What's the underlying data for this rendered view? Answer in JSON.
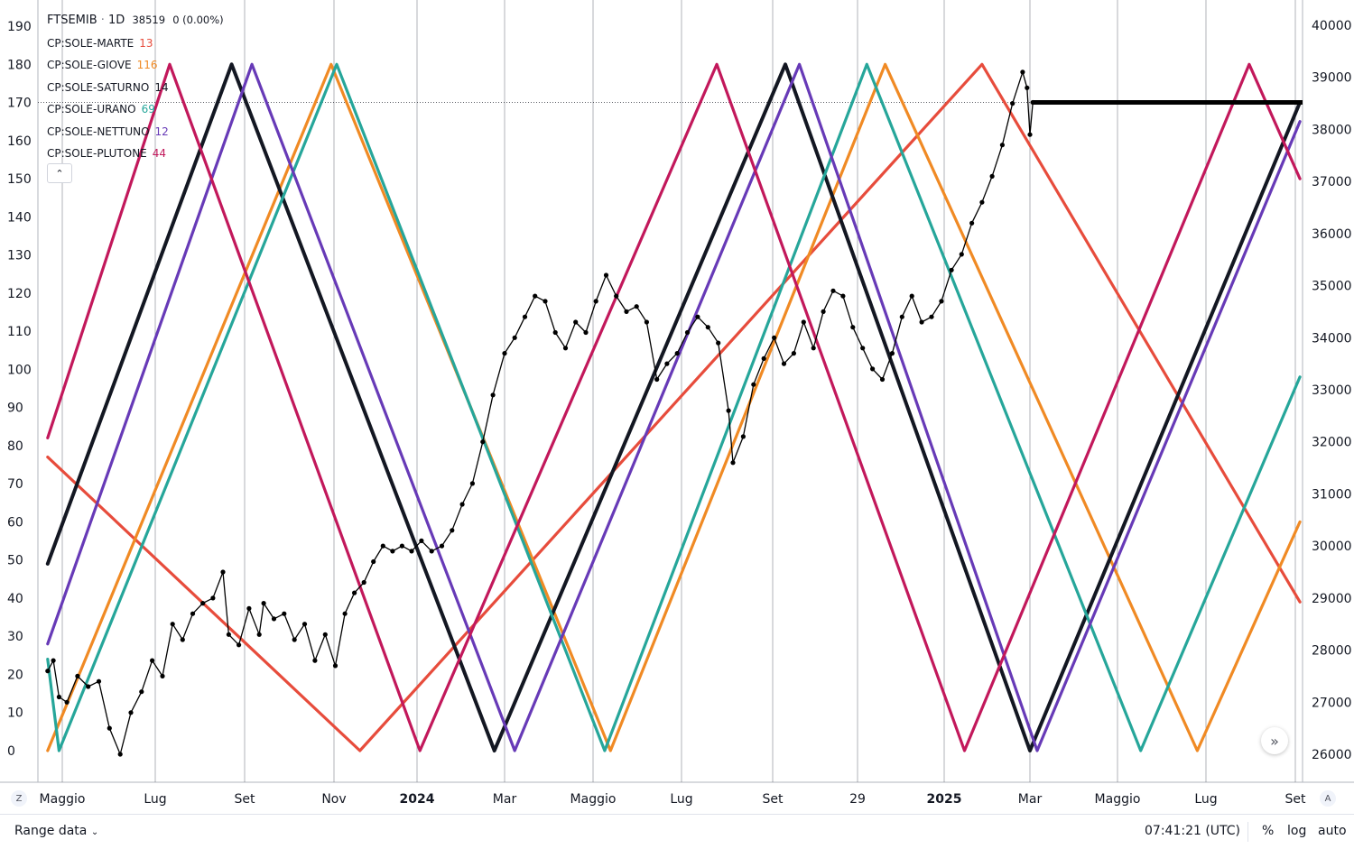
{
  "legend": {
    "symbol": "FTSEMIB",
    "interval": "1D",
    "price": "38519",
    "change": "0 (0.00%)",
    "indicators": [
      {
        "label": "CP:SOLE-MARTE",
        "value": "13",
        "color": "#e74c3c"
      },
      {
        "label": "CP:SOLE-GIOVE",
        "value": "116",
        "color": "#f08a24"
      },
      {
        "label": "CP:SOLE-SATURNO",
        "value": "14",
        "color": "#131722"
      },
      {
        "label": "CP:SOLE-URANO",
        "value": "69",
        "color": "#26a69a"
      },
      {
        "label": "CP:SOLE-NETTUNO",
        "value": "12",
        "color": "#673ab7"
      },
      {
        "label": "CP:SOLE-PLUTONE",
        "value": "44",
        "color": "#c2185b"
      }
    ],
    "collapse_icon": "chevron-up-icon"
  },
  "bottom_bar": {
    "range_label": "Range data",
    "clock": "07:41:21 (UTC)",
    "percent_label": "%",
    "log_label": "log",
    "auto_label": "auto",
    "left_button_label": "Z",
    "right_button_label": "A",
    "scroll_icon": "double-chevron-right-icon"
  },
  "colors": {
    "marte": "#e74c3c",
    "giove": "#f08a24",
    "saturno": "#131722",
    "urano": "#26a69a",
    "nettuno": "#673ab7",
    "plutone": "#c2185b",
    "price": "#000000"
  },
  "chart_data": {
    "type": "line",
    "x_tick_labels": [
      "Maggio",
      "Lug",
      "Set",
      "Nov",
      "2024",
      "Mar",
      "Maggio",
      "Lug",
      "Set",
      "29",
      "2025",
      "Mar",
      "Maggio",
      "Lug",
      "Set"
    ],
    "x_tick_bold": [
      "2024",
      "2025"
    ],
    "left_axis": {
      "ticks": [
        0,
        10,
        20,
        30,
        40,
        50,
        60,
        70,
        80,
        90,
        100,
        110,
        120,
        130,
        140,
        150,
        160,
        170,
        180,
        190
      ],
      "range": [
        0,
        190
      ]
    },
    "right_axis": {
      "ticks": [
        26000,
        27000,
        28000,
        29000,
        30000,
        31000,
        32000,
        33000,
        34000,
        35000,
        36000,
        37000,
        38000,
        39000,
        40000
      ],
      "range": [
        26000,
        40000
      ],
      "last_price": 38519
    },
    "series": [
      {
        "name": "CP:SOLE-MARTE",
        "axis": "left",
        "color": "#e74c3c",
        "points": [
          [
            "2023-04-13",
            77
          ],
          [
            "2023-11-20",
            0
          ],
          [
            "2025-01-27",
            180
          ],
          [
            "2025-09-10",
            39
          ]
        ]
      },
      {
        "name": "CP:SOLE-GIOVE",
        "axis": "left",
        "color": "#f08a24",
        "points": [
          [
            "2023-04-13",
            0
          ],
          [
            "2023-10-30",
            180
          ],
          [
            "2024-05-13",
            0
          ],
          [
            "2024-11-20",
            180
          ],
          [
            "2025-06-25",
            0
          ],
          [
            "2025-09-10",
            60
          ]
        ]
      },
      {
        "name": "CP:SOLE-SATURNO",
        "axis": "left",
        "color": "#131722",
        "points": [
          [
            "2023-04-13",
            49
          ],
          [
            "2023-08-23",
            180
          ],
          [
            "2024-02-23",
            0
          ],
          [
            "2024-09-10",
            180
          ],
          [
            "2025-03-01",
            0
          ],
          [
            "2025-09-10",
            170
          ]
        ]
      },
      {
        "name": "CP:SOLE-URANO",
        "axis": "left",
        "color": "#26a69a",
        "points": [
          [
            "2023-04-13",
            24
          ],
          [
            "2023-04-27",
            0
          ],
          [
            "2023-11-03",
            180
          ],
          [
            "2024-05-09",
            0
          ],
          [
            "2024-11-07",
            180
          ],
          [
            "2025-05-17",
            0
          ],
          [
            "2025-09-10",
            98
          ]
        ]
      },
      {
        "name": "CP:SOLE-NETTUNO",
        "axis": "left",
        "color": "#673ab7",
        "points": [
          [
            "2023-04-13",
            28
          ],
          [
            "2023-09-06",
            180
          ],
          [
            "2024-03-08",
            0
          ],
          [
            "2024-09-20",
            180
          ],
          [
            "2025-03-06",
            0
          ],
          [
            "2025-09-10",
            165
          ]
        ]
      },
      {
        "name": "CP:SOLE-PLUTONE",
        "axis": "left",
        "color": "#c2185b",
        "points": [
          [
            "2023-04-13",
            82
          ],
          [
            "2023-07-11",
            180
          ],
          [
            "2024-01-03",
            0
          ],
          [
            "2024-07-25",
            180
          ],
          [
            "2025-01-15",
            0
          ],
          [
            "2025-07-31",
            180
          ],
          [
            "2025-09-10",
            150
          ]
        ]
      },
      {
        "name": "FTSEMIB",
        "axis": "right",
        "color": "#000000",
        "points": [
          [
            "2023-04-13",
            27600
          ],
          [
            "2023-04-20",
            27800
          ],
          [
            "2023-04-27",
            27100
          ],
          [
            "2023-05-04",
            27000
          ],
          [
            "2023-05-11",
            27500
          ],
          [
            "2023-05-18",
            27300
          ],
          [
            "2023-05-25",
            27400
          ],
          [
            "2023-06-01",
            26500
          ],
          [
            "2023-06-08",
            26000
          ],
          [
            "2023-06-15",
            26800
          ],
          [
            "2023-06-22",
            27200
          ],
          [
            "2023-06-29",
            27800
          ],
          [
            "2023-07-06",
            27500
          ],
          [
            "2023-07-13",
            28500
          ],
          [
            "2023-07-20",
            28200
          ],
          [
            "2023-07-27",
            28700
          ],
          [
            "2023-08-03",
            28900
          ],
          [
            "2023-08-10",
            29000
          ],
          [
            "2023-08-17",
            29500
          ],
          [
            "2023-08-21",
            28300
          ],
          [
            "2023-08-28",
            28100
          ],
          [
            "2023-09-04",
            28800
          ],
          [
            "2023-09-11",
            28300
          ],
          [
            "2023-09-14",
            28900
          ],
          [
            "2023-09-21",
            28600
          ],
          [
            "2023-09-28",
            28700
          ],
          [
            "2023-10-05",
            28200
          ],
          [
            "2023-10-12",
            28500
          ],
          [
            "2023-10-19",
            27800
          ],
          [
            "2023-10-26",
            28300
          ],
          [
            "2023-11-02",
            27700
          ],
          [
            "2023-11-09",
            28700
          ],
          [
            "2023-11-16",
            29100
          ],
          [
            "2023-11-23",
            29300
          ],
          [
            "2023-11-30",
            29700
          ],
          [
            "2023-12-07",
            30000
          ],
          [
            "2023-12-14",
            29900
          ],
          [
            "2023-12-21",
            30000
          ],
          [
            "2023-12-28",
            29900
          ],
          [
            "2024-01-04",
            30100
          ],
          [
            "2024-01-11",
            29900
          ],
          [
            "2024-01-18",
            30000
          ],
          [
            "2024-01-25",
            30300
          ],
          [
            "2024-02-01",
            30800
          ],
          [
            "2024-02-08",
            31200
          ],
          [
            "2024-02-15",
            32000
          ],
          [
            "2024-02-22",
            32900
          ],
          [
            "2024-03-01",
            33700
          ],
          [
            "2024-03-08",
            34000
          ],
          [
            "2024-03-15",
            34400
          ],
          [
            "2024-03-22",
            34800
          ],
          [
            "2024-03-29",
            34700
          ],
          [
            "2024-04-05",
            34100
          ],
          [
            "2024-04-12",
            33800
          ],
          [
            "2024-04-19",
            34300
          ],
          [
            "2024-04-26",
            34100
          ],
          [
            "2024-05-03",
            34700
          ],
          [
            "2024-05-10",
            35200
          ],
          [
            "2024-05-17",
            34800
          ],
          [
            "2024-05-24",
            34500
          ],
          [
            "2024-05-31",
            34600
          ],
          [
            "2024-06-07",
            34300
          ],
          [
            "2024-06-14",
            33200
          ],
          [
            "2024-06-21",
            33500
          ],
          [
            "2024-06-28",
            33700
          ],
          [
            "2024-07-05",
            34100
          ],
          [
            "2024-07-12",
            34400
          ],
          [
            "2024-07-19",
            34200
          ],
          [
            "2024-07-26",
            33900
          ],
          [
            "2024-08-02",
            32600
          ],
          [
            "2024-08-05",
            31600
          ],
          [
            "2024-08-12",
            32100
          ],
          [
            "2024-08-19",
            33100
          ],
          [
            "2024-08-26",
            33600
          ],
          [
            "2024-09-02",
            34000
          ],
          [
            "2024-09-09",
            33500
          ],
          [
            "2024-09-16",
            33700
          ],
          [
            "2024-09-23",
            34300
          ],
          [
            "2024-09-30",
            33800
          ],
          [
            "2024-10-07",
            34500
          ],
          [
            "2024-10-14",
            34900
          ],
          [
            "2024-10-21",
            34800
          ],
          [
            "2024-10-28",
            34200
          ],
          [
            "2024-11-04",
            33800
          ],
          [
            "2024-11-11",
            33400
          ],
          [
            "2024-11-18",
            33200
          ],
          [
            "2024-11-25",
            33700
          ],
          [
            "2024-12-02",
            34400
          ],
          [
            "2024-12-09",
            34800
          ],
          [
            "2024-12-16",
            34300
          ],
          [
            "2024-12-23",
            34400
          ],
          [
            "2024-12-30",
            34700
          ],
          [
            "2025-01-06",
            35300
          ],
          [
            "2025-01-13",
            35600
          ],
          [
            "2025-01-20",
            36200
          ],
          [
            "2025-01-27",
            36600
          ],
          [
            "2025-02-03",
            37100
          ],
          [
            "2025-02-10",
            37700
          ],
          [
            "2025-02-17",
            38500
          ],
          [
            "2025-02-24",
            39100
          ],
          [
            "2025-02-27",
            38800
          ],
          [
            "2025-03-01",
            37900
          ],
          [
            "2025-03-03",
            38519
          ]
        ]
      }
    ]
  }
}
